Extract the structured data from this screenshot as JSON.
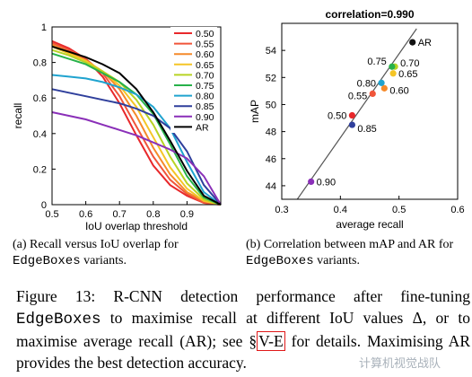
{
  "chart_data": [
    {
      "type": "line",
      "xlabel": "IoU overlap threshold",
      "ylabel": "recall",
      "xlim": [
        0.5,
        1.0
      ],
      "ylim": [
        0,
        1
      ],
      "xticks": [
        0.5,
        0.6,
        0.7,
        0.8,
        0.9
      ],
      "yticks": [
        0,
        0.2,
        0.4,
        0.6,
        0.8,
        1
      ],
      "x_tick_labels": [
        "0.5",
        "0.6",
        "0.7",
        "0.8",
        "0.9"
      ],
      "y_tick_labels": [
        "0",
        "0.2",
        "0.4",
        "0.6",
        "0.8",
        "1"
      ],
      "legend_position": "top-right",
      "series": [
        {
          "name": "0.50",
          "color": "#e8282b",
          "x": [
            0.5,
            0.55,
            0.6,
            0.65,
            0.7,
            0.75,
            0.8,
            0.85,
            0.9,
            0.95,
            1.0
          ],
          "y": [
            0.92,
            0.88,
            0.82,
            0.72,
            0.57,
            0.39,
            0.22,
            0.11,
            0.05,
            0.01,
            0.0
          ]
        },
        {
          "name": "0.55",
          "color": "#f0553a",
          "x": [
            0.5,
            0.55,
            0.6,
            0.65,
            0.7,
            0.75,
            0.8,
            0.85,
            0.9,
            0.95,
            1.0
          ],
          "y": [
            0.91,
            0.87,
            0.82,
            0.74,
            0.61,
            0.44,
            0.27,
            0.14,
            0.06,
            0.01,
            0.0
          ]
        },
        {
          "name": "0.60",
          "color": "#f58a2a",
          "x": [
            0.5,
            0.55,
            0.6,
            0.65,
            0.7,
            0.75,
            0.8,
            0.85,
            0.9,
            0.95,
            1.0
          ],
          "y": [
            0.9,
            0.86,
            0.81,
            0.75,
            0.65,
            0.5,
            0.32,
            0.17,
            0.07,
            0.02,
            0.0
          ]
        },
        {
          "name": "0.65",
          "color": "#f5c526",
          "x": [
            0.5,
            0.55,
            0.6,
            0.65,
            0.7,
            0.75,
            0.8,
            0.85,
            0.9,
            0.95,
            1.0
          ],
          "y": [
            0.89,
            0.85,
            0.81,
            0.75,
            0.67,
            0.55,
            0.38,
            0.21,
            0.09,
            0.02,
            0.0
          ]
        },
        {
          "name": "0.70",
          "color": "#b7d324",
          "x": [
            0.5,
            0.55,
            0.6,
            0.65,
            0.7,
            0.75,
            0.8,
            0.85,
            0.9,
            0.95,
            1.0
          ],
          "y": [
            0.87,
            0.84,
            0.8,
            0.75,
            0.69,
            0.59,
            0.45,
            0.27,
            0.12,
            0.03,
            0.0
          ]
        },
        {
          "name": "0.75",
          "color": "#27b14a",
          "x": [
            0.5,
            0.55,
            0.6,
            0.65,
            0.7,
            0.75,
            0.8,
            0.85,
            0.9,
            0.95,
            1.0
          ],
          "y": [
            0.85,
            0.82,
            0.79,
            0.74,
            0.69,
            0.62,
            0.51,
            0.34,
            0.16,
            0.04,
            0.0
          ]
        },
        {
          "name": "0.80",
          "color": "#1fa3cf",
          "x": [
            0.5,
            0.55,
            0.6,
            0.65,
            0.7,
            0.75,
            0.8,
            0.85,
            0.9,
            0.95,
            1.0
          ],
          "y": [
            0.73,
            0.72,
            0.71,
            0.69,
            0.66,
            0.62,
            0.55,
            0.43,
            0.24,
            0.07,
            0.0
          ]
        },
        {
          "name": "0.85",
          "color": "#2f3f9c",
          "x": [
            0.5,
            0.55,
            0.6,
            0.65,
            0.7,
            0.75,
            0.8,
            0.85,
            0.9,
            0.95,
            1.0
          ],
          "y": [
            0.65,
            0.63,
            0.61,
            0.59,
            0.57,
            0.54,
            0.5,
            0.43,
            0.3,
            0.11,
            0.0
          ]
        },
        {
          "name": "0.90",
          "color": "#8a2fb8",
          "x": [
            0.5,
            0.55,
            0.6,
            0.65,
            0.7,
            0.75,
            0.8,
            0.85,
            0.9,
            0.95,
            1.0
          ],
          "y": [
            0.52,
            0.5,
            0.48,
            0.45,
            0.42,
            0.39,
            0.35,
            0.31,
            0.26,
            0.16,
            0.0
          ]
        },
        {
          "name": "AR",
          "color": "#000000",
          "x": [
            0.5,
            0.55,
            0.6,
            0.65,
            0.7,
            0.75,
            0.8,
            0.85,
            0.9,
            0.95,
            1.0
          ],
          "y": [
            0.89,
            0.86,
            0.83,
            0.79,
            0.74,
            0.65,
            0.52,
            0.36,
            0.19,
            0.05,
            0.0
          ]
        }
      ]
    },
    {
      "type": "scatter",
      "title": "correlation=0.990",
      "xlabel": "average recall",
      "ylabel": "mAP",
      "xlim": [
        0.3,
        0.6
      ],
      "ylim": [
        43,
        56
      ],
      "xticks": [
        0.3,
        0.4,
        0.5,
        0.6
      ],
      "yticks": [
        44,
        46,
        48,
        50,
        52,
        54
      ],
      "x_tick_labels": [
        "0.3",
        "0.4",
        "0.5",
        "0.6"
      ],
      "y_tick_labels": [
        "44",
        "46",
        "48",
        "50",
        "52",
        "54"
      ],
      "fit_line": {
        "x": [
          0.32,
          0.53
        ],
        "y": [
          42.6,
          55.6
        ],
        "color": "#555555"
      },
      "points": [
        {
          "label": "0.50",
          "x": 0.42,
          "y": 49.2,
          "color": "#e8282b",
          "label_side": "left"
        },
        {
          "label": "0.55",
          "x": 0.455,
          "y": 50.8,
          "color": "#f0553a",
          "label_side": "left"
        },
        {
          "label": "0.60",
          "x": 0.475,
          "y": 51.2,
          "color": "#f58a2a",
          "label_side": "right"
        },
        {
          "label": "0.65",
          "x": 0.49,
          "y": 52.3,
          "color": "#f5c526",
          "label_side": "right"
        },
        {
          "label": "0.70",
          "x": 0.493,
          "y": 52.8,
          "color": "#b7d324",
          "label_side": "right"
        },
        {
          "label": "0.75",
          "x": 0.488,
          "y": 52.8,
          "color": "#27b14a",
          "label_side": "left"
        },
        {
          "label": "0.80",
          "x": 0.47,
          "y": 51.6,
          "color": "#1fa3cf",
          "label_side": "left"
        },
        {
          "label": "0.85",
          "x": 0.42,
          "y": 48.5,
          "color": "#2f3f9c",
          "label_side": "right"
        },
        {
          "label": "0.90",
          "x": 0.35,
          "y": 44.3,
          "color": "#8a2fb8",
          "label_side": "right"
        },
        {
          "label": "AR",
          "x": 0.523,
          "y": 54.6,
          "color": "#111111",
          "label_side": "right"
        }
      ]
    }
  ],
  "captions": {
    "a_text": "(a) Recall versus IoU overlap for ",
    "a_mono": "EdgeBoxes",
    "a_tail": " variants.",
    "b_text": "(b) Correlation between mAP and AR for ",
    "b_mono": "EdgeBoxes",
    "b_tail": " variants."
  },
  "figure_caption": {
    "lead": "Figure 13: R-CNN detection performance after fine-tuning ",
    "mono": "EdgeBoxes",
    "middle": " to maximise recall at different IoU values Δ, or to maximise average recall (AR); see §",
    "ref": "V-E",
    "tail": " for details. Maximising AR provides the best detection accuracy."
  },
  "watermark": "计算机视觉战队"
}
